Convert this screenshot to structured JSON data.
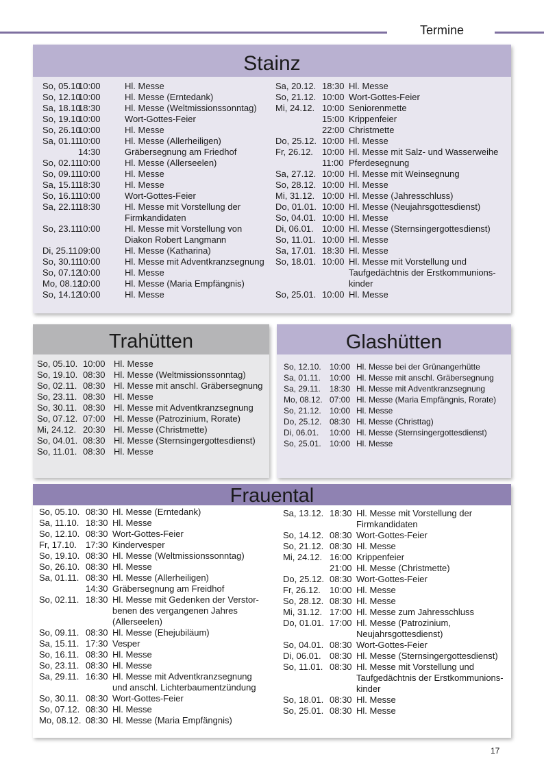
{
  "header": {
    "section": "Termine"
  },
  "colors": {
    "rule": "#7e6fa0",
    "stainz_header": "#b9b1d1",
    "stainz_body": "#e8e6ef",
    "trahuetten_header": "#b5b5b7",
    "trahuetten_body": "#e8e8ea",
    "glashuetten_header": "#b9b1d1",
    "glashuetten_body": "#e8e6ef",
    "frauental_header": "#8f82b2",
    "frauental_body": "#ffffff"
  },
  "stainz": {
    "title": "Stainz",
    "left": [
      {
        "date": "So, 05.10.",
        "time": "10:00",
        "desc": "Hl. Messe"
      },
      {
        "date": "So, 12.10.",
        "time": "10:00",
        "desc": "Hl. Messe (Erntedank)"
      },
      {
        "date": "Sa, 18.10.",
        "time": "18:30",
        "desc": "Hl. Messe (Weltmissionssonntag)"
      },
      {
        "date": "So, 19.10.",
        "time": "10:00",
        "desc": "Wort-Gottes-Feier"
      },
      {
        "date": "So, 26.10.",
        "time": "10:00",
        "desc": "Hl. Messe"
      },
      {
        "date": "Sa, 01.11.",
        "time": "10:00",
        "desc": "Hl. Messe (Allerheiligen)"
      },
      {
        "date": "",
        "time": "14:30",
        "desc": "Gräbersegnung am Friedhof"
      },
      {
        "date": "So, 02.11.",
        "time": "10:00",
        "desc": "Hl. Messe (Allerseelen)"
      },
      {
        "date": "So, 09.11.",
        "time": "10:00",
        "desc": "Hl. Messe"
      },
      {
        "date": "Sa, 15.11.",
        "time": "18:30",
        "desc": "Hl. Messe"
      },
      {
        "date": "So, 16.11",
        "time": "10:00",
        "desc": "Wort-Gottes-Feier"
      },
      {
        "date": "Sa, 22.11.",
        "time": "18:30",
        "desc": "Hl. Messe mit Vorstellung der\nFirmkandidaten"
      },
      {
        "date": "So, 23.11.",
        "time": "10:00",
        "desc": "Hl. Messe mit Vorstellung von\nDiakon Robert Langmann"
      },
      {
        "date": "Di, 25.11.",
        "time": "09:00",
        "desc": "Hl. Messe (Katharina)"
      },
      {
        "date": "So, 30.11.",
        "time": "10:00",
        "desc": "Hl. Messe mit Adventkranzsegnung"
      },
      {
        "date": "So, 07.12.",
        "time": "10:00",
        "desc": "Hl. Messe"
      },
      {
        "date": "Mo, 08.12.",
        "time": "10:00",
        "desc": "Hl. Messe (Maria Empfängnis)"
      },
      {
        "date": "So, 14.12.",
        "time": "10:00",
        "desc": "Hl. Messe"
      }
    ],
    "right": [
      {
        "date": "Sa, 20.12.",
        "time": "18:30",
        "desc": "Hl. Messe"
      },
      {
        "date": "So, 21.12.",
        "time": "10:00",
        "desc": "Wort-Gottes-Feier"
      },
      {
        "date": "Mi, 24.12.",
        "time": "10:00",
        "desc": "Seniorenmette"
      },
      {
        "date": "",
        "time": "15:00",
        "desc": "Krippenfeier"
      },
      {
        "date": "",
        "time": "22:00",
        "desc": "Christmette"
      },
      {
        "date": "Do, 25.12.",
        "time": "10:00",
        "desc": "Hl. Messe"
      },
      {
        "date": "Fr, 26.12.",
        "time": "10:00",
        "desc": "Hl. Messe mit Salz- und Wasserweihe"
      },
      {
        "date": "",
        "time": "11:00",
        "desc": "Pferdesegnung"
      },
      {
        "date": "Sa, 27.12.",
        "time": "10:00",
        "desc": "Hl. Messe mit Weinsegnung"
      },
      {
        "date": "So, 28.12.",
        "time": "10:00",
        "desc": "Hl. Messe"
      },
      {
        "date": "Mi, 31.12.",
        "time": "10:00",
        "desc": "Hl. Messe (Jahresschluss)"
      },
      {
        "date": "Do, 01.01.",
        "time": "10:00",
        "desc": "Hl. Messe (Neujahrsgottesdienst)"
      },
      {
        "date": "So, 04.01.",
        "time": "10:00",
        "desc": "Hl. Messe"
      },
      {
        "date": "Di, 06.01.",
        "time": "10:00",
        "desc": "Hl. Messe (Sternsingergottesdienst)"
      },
      {
        "date": "So, 11.01.",
        "time": "10:00",
        "desc": "Hl. Messe"
      },
      {
        "date": "Sa, 17.01.",
        "time": "18:30",
        "desc": "Hl. Messe"
      },
      {
        "date": "So, 18.01.",
        "time": "10:00",
        "desc": "Hl. Messe mit Vorstellung und\nTaufgedächtnis der Erstkommunions-\nkinder"
      },
      {
        "date": "So, 25.01.",
        "time": "10:00",
        "desc": "Hl. Messe"
      }
    ]
  },
  "trahuetten": {
    "title": "Trahütten",
    "entries": [
      {
        "date": "So, 05.10.",
        "time": "10:00",
        "desc": "Hl. Messe"
      },
      {
        "date": "So, 19.10.",
        "time": "08:30",
        "desc": "Hl. Messe (Weltmissionssonntag)"
      },
      {
        "date": "So, 02.11.",
        "time": "08:30",
        "desc": "Hl. Messe mit anschl. Gräbersegnung"
      },
      {
        "date": "So, 23.11.",
        "time": "08:30",
        "desc": "Hl. Messe"
      },
      {
        "date": "So, 30.11.",
        "time": "08:30",
        "desc": "Hl. Messe mit Adventkranzsegnung"
      },
      {
        "date": "So, 07.12.",
        "time": "07:00",
        "desc": "Hl. Messe (Patrozinium, Rorate)"
      },
      {
        "date": "Mi, 24.12.",
        "time": "20:30",
        "desc": "Hl. Messe (Christmette)"
      },
      {
        "date": "So, 04.01.",
        "time": "08:30",
        "desc": "Hl. Messe (Sternsingergottesdienst)"
      },
      {
        "date": "So, 11.01.",
        "time": "08:30",
        "desc": "Hl. Messe"
      }
    ]
  },
  "glashuetten": {
    "title": "Glashütten",
    "entries": [
      {
        "date": "So, 12.10.",
        "time": "10:00",
        "desc": "Hl. Messe bei der Grünangerhütte"
      },
      {
        "date": "Sa, 01.11.",
        "time": "10:00",
        "desc": "Hl. Messe mit anschl. Gräbersegnung"
      },
      {
        "date": "Sa, 29.11.",
        "time": "18:30",
        "desc": "Hl. Messe mit Adventkranzsegnung"
      },
      {
        "date": "Mo, 08.12.",
        "time": "07:00",
        "desc": "Hl. Messe (Maria Empfängnis, Rorate)"
      },
      {
        "date": "So, 21.12.",
        "time": "10:00",
        "desc": "Hl. Messe"
      },
      {
        "date": "Do, 25.12.",
        "time": "08:30",
        "desc": "Hl. Messe (Christtag)"
      },
      {
        "date": "Di, 06.01.",
        "time": "10:00",
        "desc": "Hl. Messe (Sternsingergottesdienst)"
      },
      {
        "date": "So, 25.01.",
        "time": "10:00",
        "desc": "Hl. Messe"
      }
    ]
  },
  "frauental": {
    "title": "Frauental",
    "left": [
      {
        "date": "So, 05.10.",
        "time": "08:30",
        "desc": "Hl. Messe (Erntedank)"
      },
      {
        "date": "Sa, 11.10.",
        "time": "18:30",
        "desc": "Hl. Messe"
      },
      {
        "date": "So, 12.10.",
        "time": "08:30",
        "desc": "Wort-Gottes-Feier"
      },
      {
        "date": "Fr, 17.10.",
        "time": "17:30",
        "desc": "Kindervesper"
      },
      {
        "date": "So, 19.10.",
        "time": "08:30",
        "desc": "Hl. Messe (Weltmissionssonntag)"
      },
      {
        "date": "So, 26.10.",
        "time": "08:30",
        "desc": "Hl. Messe"
      },
      {
        "date": "Sa, 01.11.",
        "time": "08:30",
        "desc": "Hl. Messe (Allerheiligen)"
      },
      {
        "date": "",
        "time": "14:30",
        "desc": "Gräbersegnung am Freidhof"
      },
      {
        "date": "So, 02.11.",
        "time": "18:30",
        "desc": "Hl. Messe mit Gedenken der Verstor-\nbenen des vergangenen Jahres\n(Allerseelen)"
      },
      {
        "date": "So, 09.11.",
        "time": "08:30",
        "desc": "Hl. Messe (Ehejubiläum)"
      },
      {
        "date": "Sa, 15.11.",
        "time": "17:30",
        "desc": "Vesper"
      },
      {
        "date": "So, 16.11.",
        "time": "08:30",
        "desc": "Hl. Messe"
      },
      {
        "date": "So, 23.11.",
        "time": "08:30",
        "desc": "Hl. Messe"
      },
      {
        "date": "Sa, 29.11.",
        "time": "16:30",
        "desc": "Hl. Messe mit Adventkranzsegnung\nund anschl. Lichterbaumentzündung"
      },
      {
        "date": "So, 30.11.",
        "time": "08:30",
        "desc": "Wort-Gottes-Feier"
      },
      {
        "date": "So, 07.12.",
        "time": "08:30",
        "desc": "Hl. Messe"
      },
      {
        "date": "Mo, 08.12.",
        "time": "08:30",
        "desc": "Hl. Messe (Maria Empfängnis)"
      }
    ],
    "right": [
      {
        "date": "Sa, 13.12.",
        "time": "18:30",
        "desc": "Hl. Messe mit Vorstellung der\nFirmkandidaten"
      },
      {
        "date": "So, 14.12.",
        "time": "08:30",
        "desc": "Wort-Gottes-Feier"
      },
      {
        "date": "So, 21.12.",
        "time": "08:30",
        "desc": "Hl. Messe"
      },
      {
        "date": "Mi, 24.12.",
        "time": "16:00",
        "desc": "Krippenfeier"
      },
      {
        "date": "",
        "time": "21:00",
        "desc": "Hl. Messe (Christmette)"
      },
      {
        "date": "Do, 25.12.",
        "time": "08:30",
        "desc": "Wort-Gottes-Feier"
      },
      {
        "date": "Fr, 26.12.",
        "time": "10:00",
        "desc": "Hl. Messe"
      },
      {
        "date": "So, 28.12.",
        "time": "08:30",
        "desc": "Hl. Messe"
      },
      {
        "date": "Mi, 31.12.",
        "time": "17:00",
        "desc": "Hl. Messe zum Jahresschluss"
      },
      {
        "date": "Do, 01.01.",
        "time": "17:00",
        "desc": "Hl. Messe (Patrozinium,\nNeujahrsgottesdienst)"
      },
      {
        "date": "So, 04.01.",
        "time": "08:30",
        "desc": "Wort-Gottes-Feier"
      },
      {
        "date": "Di, 06.01.",
        "time": "08:30",
        "desc": "Hl. Messe (Sternsingergottesdienst)"
      },
      {
        "date": "So, 11.01.",
        "time": "08:30",
        "desc": "Hl. Messe mit Vorstellung und\nTaufgedächtnis der Erstkommunions-\nkinder"
      },
      {
        "date": "So, 18.01.",
        "time": "08:30",
        "desc": "Hl. Messe"
      },
      {
        "date": "So, 25.01.",
        "time": "08:30",
        "desc": "Hl. Messe"
      }
    ]
  },
  "footer": {
    "page_number": "17"
  }
}
